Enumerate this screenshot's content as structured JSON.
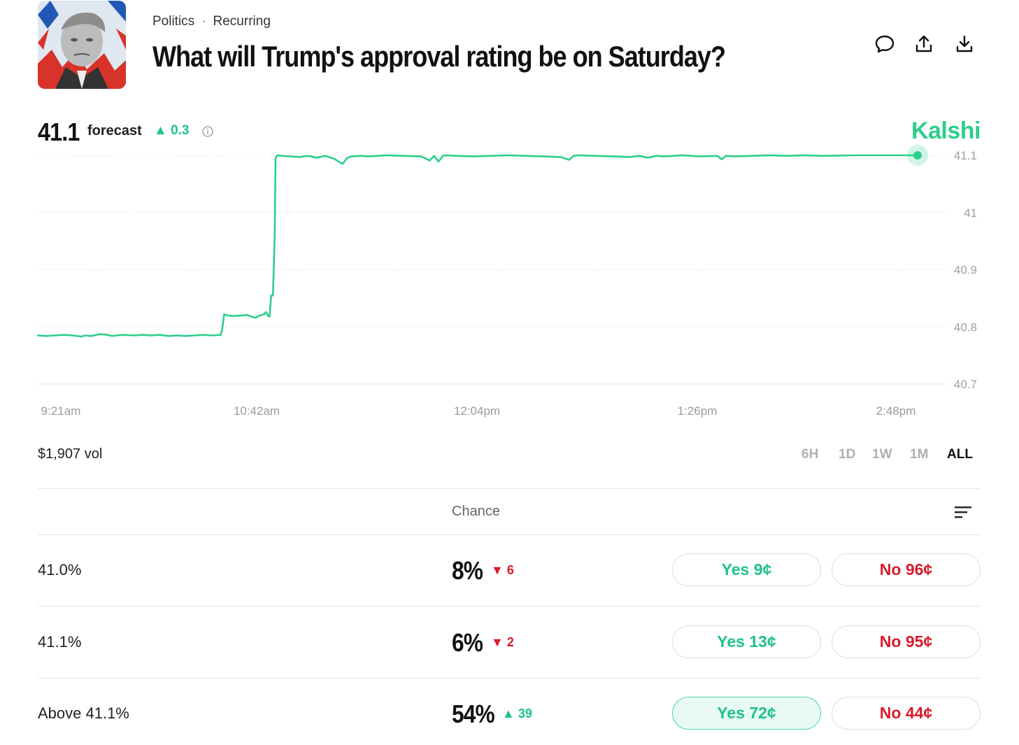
{
  "header": {
    "category": "Politics",
    "separator": "·",
    "tag": "Recurring",
    "title": "What will Trump's approval rating be on Saturday?",
    "icons": [
      "comment-icon",
      "share-icon",
      "download-icon"
    ]
  },
  "forecast": {
    "value": "41.1",
    "label": "forecast",
    "change": "▲ 0.3",
    "brand": "Kalshi"
  },
  "chart_data": {
    "type": "line",
    "title": "",
    "xlabel": "",
    "ylabel": "",
    "ylim": [
      40.7,
      41.1
    ],
    "y_ticks": [
      "41.1",
      "41",
      "40.9",
      "40.8",
      "40.7"
    ],
    "x_ticks": [
      "9:21am",
      "10:42am",
      "12:04pm",
      "1:26pm",
      "2:48pm"
    ],
    "grid": "dotted horizontal",
    "line_color": "#2ccf8b",
    "series": [
      {
        "name": "forecast",
        "x_minutes": [
          0,
          10,
          20,
          30,
          40,
          50,
          55,
          60,
          65,
          70,
          75,
          80,
          85,
          90,
          100,
          110,
          120,
          130,
          140,
          150,
          160,
          170,
          180,
          190,
          200,
          210,
          212,
          214,
          218,
          225,
          235,
          240,
          245,
          250,
          255,
          260,
          262,
          265,
          266,
          268,
          270,
          272,
          273,
          275,
          280,
          290,
          300,
          310,
          320,
          330,
          340,
          350,
          355,
          360,
          370,
          380,
          390,
          400,
          420,
          440,
          450,
          455,
          460,
          465,
          470,
          480,
          500,
          520,
          540,
          560,
          580,
          600,
          610,
          615,
          620,
          640,
          660,
          680,
          690,
          700,
          710,
          720,
          730,
          740,
          760,
          780,
          785,
          790,
          800,
          820,
          840,
          860,
          880,
          900,
          940,
          980,
          1010
        ],
        "values": [
          40.785,
          40.784,
          40.785,
          40.786,
          40.785,
          40.783,
          40.785,
          40.784,
          40.785,
          40.787,
          40.787,
          40.786,
          40.784,
          40.785,
          40.786,
          40.785,
          40.786,
          40.785,
          40.786,
          40.784,
          40.785,
          40.784,
          40.785,
          40.786,
          40.785,
          40.786,
          40.799,
          40.822,
          40.82,
          40.819,
          40.82,
          40.821,
          40.818,
          40.816,
          40.82,
          40.822,
          40.826,
          40.818,
          40.818,
          40.855,
          40.855,
          40.96,
          41.095,
          41.1,
          41.099,
          41.098,
          41.097,
          41.099,
          41.096,
          41.099,
          41.094,
          41.085,
          41.095,
          41.098,
          41.099,
          41.098,
          41.099,
          41.1,
          41.099,
          41.098,
          41.091,
          41.099,
          41.089,
          41.099,
          41.1,
          41.099,
          41.098,
          41.099,
          41.1,
          41.099,
          41.098,
          41.097,
          41.092,
          41.099,
          41.1,
          41.099,
          41.098,
          41.097,
          41.099,
          41.096,
          41.099,
          41.098,
          41.099,
          41.1,
          41.098,
          41.099,
          41.093,
          41.099,
          41.098,
          41.099,
          41.1,
          41.099,
          41.1,
          41.099,
          41.1,
          41.1,
          41.1
        ]
      }
    ]
  },
  "volume": "$1,907 vol",
  "ranges": [
    "6H",
    "1D",
    "1W",
    "1M",
    "ALL"
  ],
  "active_range": "ALL",
  "table": {
    "chance_header": "Chance",
    "rows": [
      {
        "label": "41.0%",
        "chance": "8%",
        "change": "▼ 6",
        "yes": "Yes 9¢",
        "no": "No 96¢"
      },
      {
        "label": "41.1%",
        "chance": "6%",
        "change": "▼ 2",
        "yes": "Yes 13¢",
        "no": "No 95¢"
      },
      {
        "label": "Above 41.1%",
        "chance": "54%",
        "change": "▲ 39",
        "yes": "Yes 72¢",
        "no": "No 44¢"
      }
    ]
  },
  "colors": {
    "accent": "#2ccf8b",
    "up": "#1fc18a",
    "down": "#d61c2b"
  }
}
